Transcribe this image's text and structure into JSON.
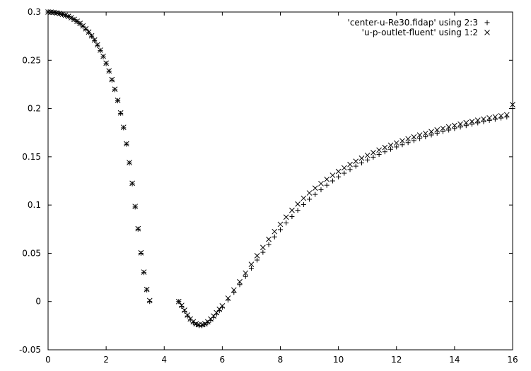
{
  "chart_data": {
    "type": "scatter",
    "title": "",
    "xlabel": "",
    "ylabel": "",
    "xlim": [
      0,
      16
    ],
    "ylim": [
      -0.05,
      0.3
    ],
    "xticks": [
      0,
      2,
      4,
      6,
      8,
      10,
      12,
      14,
      16
    ],
    "yticks": [
      -0.05,
      0,
      0.05,
      0.1,
      0.15,
      0.2,
      0.25,
      0.3
    ],
    "xtick_labels": [
      "0",
      "2",
      "4",
      "6",
      "8",
      "10",
      "12",
      "14",
      "16"
    ],
    "ytick_labels": [
      "-0.05",
      "0",
      "0.05",
      "0.1",
      "0.15",
      "0.2",
      "0.25",
      "0.3"
    ],
    "grid": false,
    "legend_position": "top-right",
    "series": [
      {
        "name": "'center-u-Re30.fidap' using 2:3",
        "marker": "plus",
        "color": "#000000",
        "x": [
          0.0,
          0.1,
          0.2,
          0.3,
          0.4,
          0.5,
          0.6,
          0.7,
          0.8,
          0.9,
          1.0,
          1.1,
          1.2,
          1.3,
          1.4,
          1.5,
          1.6,
          1.7,
          1.8,
          1.9,
          2.0,
          2.1,
          2.2,
          2.3,
          2.4,
          2.5,
          2.6,
          2.7,
          2.8,
          2.9,
          3.0,
          3.1,
          3.2,
          3.3,
          3.4,
          3.5,
          4.5,
          4.6,
          4.7,
          4.8,
          4.9,
          5.0,
          5.1,
          5.2,
          5.3,
          5.4,
          5.5,
          5.6,
          5.7,
          5.8,
          5.9,
          6.0,
          6.2,
          6.4,
          6.6,
          6.8,
          7.0,
          7.2,
          7.4,
          7.6,
          7.8,
          8.0,
          8.2,
          8.4,
          8.6,
          8.8,
          9.0,
          9.2,
          9.4,
          9.6,
          9.8,
          10.0,
          10.2,
          10.4,
          10.6,
          10.8,
          11.0,
          11.2,
          11.4,
          11.6,
          11.8,
          12.0,
          12.2,
          12.4,
          12.6,
          12.8,
          13.0,
          13.2,
          13.4,
          13.6,
          13.8,
          14.0,
          14.2,
          14.4,
          14.6,
          14.8,
          15.0,
          15.2,
          15.4,
          15.6,
          15.8,
          16.0
        ],
        "y": [
          0.3,
          0.2998,
          0.2995,
          0.299,
          0.2983,
          0.2975,
          0.2965,
          0.2953,
          0.2938,
          0.2922,
          0.29,
          0.2878,
          0.2852,
          0.2822,
          0.2788,
          0.275,
          0.2705,
          0.2655,
          0.26,
          0.2535,
          0.2465,
          0.2385,
          0.2295,
          0.2195,
          0.208,
          0.195,
          0.18,
          0.163,
          0.1435,
          0.122,
          0.098,
          0.075,
          0.05,
          0.03,
          0.012,
          0.0,
          0.0,
          -0.005,
          -0.01,
          -0.015,
          -0.019,
          -0.022,
          -0.024,
          -0.025,
          -0.025,
          -0.024,
          -0.022,
          -0.0195,
          -0.0165,
          -0.013,
          -0.0095,
          -0.006,
          0.0015,
          0.0095,
          0.0175,
          0.026,
          0.0345,
          0.043,
          0.051,
          0.059,
          0.067,
          0.0745,
          0.0815,
          0.088,
          0.0945,
          0.1005,
          0.106,
          0.111,
          0.1158,
          0.1205,
          0.125,
          0.1292,
          0.133,
          0.1368,
          0.1403,
          0.1436,
          0.1467,
          0.1496,
          0.1525,
          0.1552,
          0.1578,
          0.1602,
          0.1625,
          0.1647,
          0.1668,
          0.1688,
          0.1707,
          0.1726,
          0.1744,
          0.1761,
          0.1777,
          0.1793,
          0.1808,
          0.1823,
          0.1837,
          0.1851,
          0.1864,
          0.1877,
          0.1889,
          0.1901,
          0.1912,
          0.2
        ]
      },
      {
        "name": "'u-p-outlet-fluent' using 1:2",
        "marker": "x",
        "color": "#000000",
        "x": [
          0.0,
          0.1,
          0.2,
          0.3,
          0.4,
          0.5,
          0.6,
          0.7,
          0.8,
          0.9,
          1.0,
          1.1,
          1.2,
          1.3,
          1.4,
          1.5,
          1.6,
          1.7,
          1.8,
          1.9,
          2.0,
          2.1,
          2.2,
          2.3,
          2.4,
          2.5,
          2.6,
          2.7,
          2.8,
          2.9,
          3.0,
          3.1,
          3.2,
          3.3,
          3.4,
          3.5,
          4.5,
          4.6,
          4.7,
          4.8,
          4.9,
          5.0,
          5.1,
          5.2,
          5.3,
          5.4,
          5.5,
          5.6,
          5.7,
          5.8,
          5.9,
          6.0,
          6.2,
          6.4,
          6.6,
          6.8,
          7.0,
          7.2,
          7.4,
          7.6,
          7.8,
          8.0,
          8.2,
          8.4,
          8.6,
          8.8,
          9.0,
          9.2,
          9.4,
          9.6,
          9.8,
          10.0,
          10.2,
          10.4,
          10.6,
          10.8,
          11.0,
          11.2,
          11.4,
          11.6,
          11.8,
          12.0,
          12.2,
          12.4,
          12.6,
          12.8,
          13.0,
          13.2,
          13.4,
          13.6,
          13.8,
          14.0,
          14.2,
          14.4,
          14.6,
          14.8,
          15.0,
          15.2,
          15.4,
          15.6,
          15.8,
          16.0
        ],
        "y": [
          0.3,
          0.2999,
          0.2996,
          0.2991,
          0.2985,
          0.2977,
          0.2967,
          0.2955,
          0.2941,
          0.2924,
          0.2904,
          0.2882,
          0.2856,
          0.2826,
          0.2792,
          0.2754,
          0.271,
          0.266,
          0.2605,
          0.2541,
          0.247,
          0.239,
          0.23,
          0.22,
          0.2085,
          0.1955,
          0.1805,
          0.1635,
          0.144,
          0.1225,
          0.0985,
          0.0755,
          0.0505,
          0.0305,
          0.0125,
          0.001,
          0.0,
          -0.004,
          -0.009,
          -0.014,
          -0.018,
          -0.021,
          -0.023,
          -0.024,
          -0.024,
          -0.023,
          -0.021,
          -0.018,
          -0.015,
          -0.0115,
          -0.008,
          -0.0045,
          0.0035,
          0.012,
          0.0205,
          0.0295,
          0.0385,
          0.0475,
          0.056,
          0.0645,
          0.0725,
          0.08,
          0.0875,
          0.0945,
          0.101,
          0.107,
          0.1125,
          0.1175,
          0.1222,
          0.1266,
          0.1308,
          0.1348,
          0.1385,
          0.142,
          0.1453,
          0.1485,
          0.1515,
          0.1543,
          0.157,
          0.1596,
          0.162,
          0.1643,
          0.1665,
          0.1686,
          0.1706,
          0.1725,
          0.1743,
          0.1761,
          0.1778,
          0.1794,
          0.181,
          0.1825,
          0.1839,
          0.1853,
          0.1866,
          0.1879,
          0.1891,
          0.1903,
          0.1914,
          0.1925,
          0.1935,
          0.204
        ]
      }
    ]
  }
}
